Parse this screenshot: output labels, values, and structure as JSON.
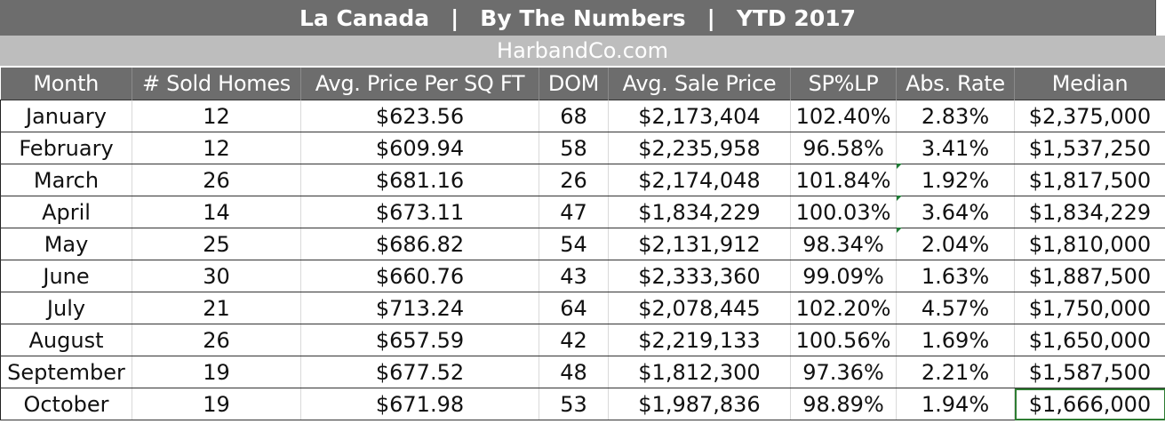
{
  "title": {
    "part1": "La Canada",
    "sep": "|",
    "part2": "By The Numbers",
    "part3": "YTD 2017"
  },
  "subtitle": "HarbandCo.com",
  "columns": [
    "Month",
    "# Sold Homes",
    "Avg. Price Per SQ FT",
    "DOM",
    "Avg. Sale Price",
    "SP%LP",
    "Abs. Rate",
    "Median"
  ],
  "rows": [
    {
      "month": "January",
      "sold": "12",
      "ppsf": "$623.56",
      "dom": "68",
      "avg_price": "$2,173,404",
      "sp_lp": "102.40%",
      "abs_rate": "2.83%",
      "median": "$2,375,000"
    },
    {
      "month": "February",
      "sold": "12",
      "ppsf": "$609.94",
      "dom": "58",
      "avg_price": "$2,235,958",
      "sp_lp": "96.58%",
      "abs_rate": "3.41%",
      "median": "$1,537,250"
    },
    {
      "month": "March",
      "sold": "26",
      "ppsf": "$681.16",
      "dom": "26",
      "avg_price": "$2,174,048",
      "sp_lp": "101.84%",
      "abs_rate": "1.92%",
      "median": "$1,817,500"
    },
    {
      "month": "April",
      "sold": "14",
      "ppsf": "$673.11",
      "dom": "47",
      "avg_price": "$1,834,229",
      "sp_lp": "100.03%",
      "abs_rate": "3.64%",
      "median": "$1,834,229"
    },
    {
      "month": "May",
      "sold": "25",
      "ppsf": "$686.82",
      "dom": "54",
      "avg_price": "$2,131,912",
      "sp_lp": "98.34%",
      "abs_rate": "2.04%",
      "median": "$1,810,000"
    },
    {
      "month": "June",
      "sold": "30",
      "ppsf": "$660.76",
      "dom": "43",
      "avg_price": "$2,333,360",
      "sp_lp": "99.09%",
      "abs_rate": "1.63%",
      "median": "$1,887,500"
    },
    {
      "month": "July",
      "sold": "21",
      "ppsf": "$713.24",
      "dom": "64",
      "avg_price": "$2,078,445",
      "sp_lp": "102.20%",
      "abs_rate": "4.57%",
      "median": "$1,750,000"
    },
    {
      "month": "August",
      "sold": "26",
      "ppsf": "$657.59",
      "dom": "42",
      "avg_price": "$2,219,133",
      "sp_lp": "100.56%",
      "abs_rate": "1.69%",
      "median": "$1,650,000"
    },
    {
      "month": "September",
      "sold": "19",
      "ppsf": "$677.52",
      "dom": "48",
      "avg_price": "$1,812,300",
      "sp_lp": "97.36%",
      "abs_rate": "2.21%",
      "median": "$1,587,500"
    },
    {
      "month": "October",
      "sold": "19",
      "ppsf": "$671.98",
      "dom": "53",
      "avg_price": "$1,987,836",
      "sp_lp": "98.89%",
      "abs_rate": "1.94%",
      "median": "$1,666,000"
    }
  ],
  "colors": {
    "header_bg": "#6d6d6d",
    "subheader_bg": "#bdbdbd",
    "header_text": "#ffffff",
    "selection": "#2e7d32"
  }
}
